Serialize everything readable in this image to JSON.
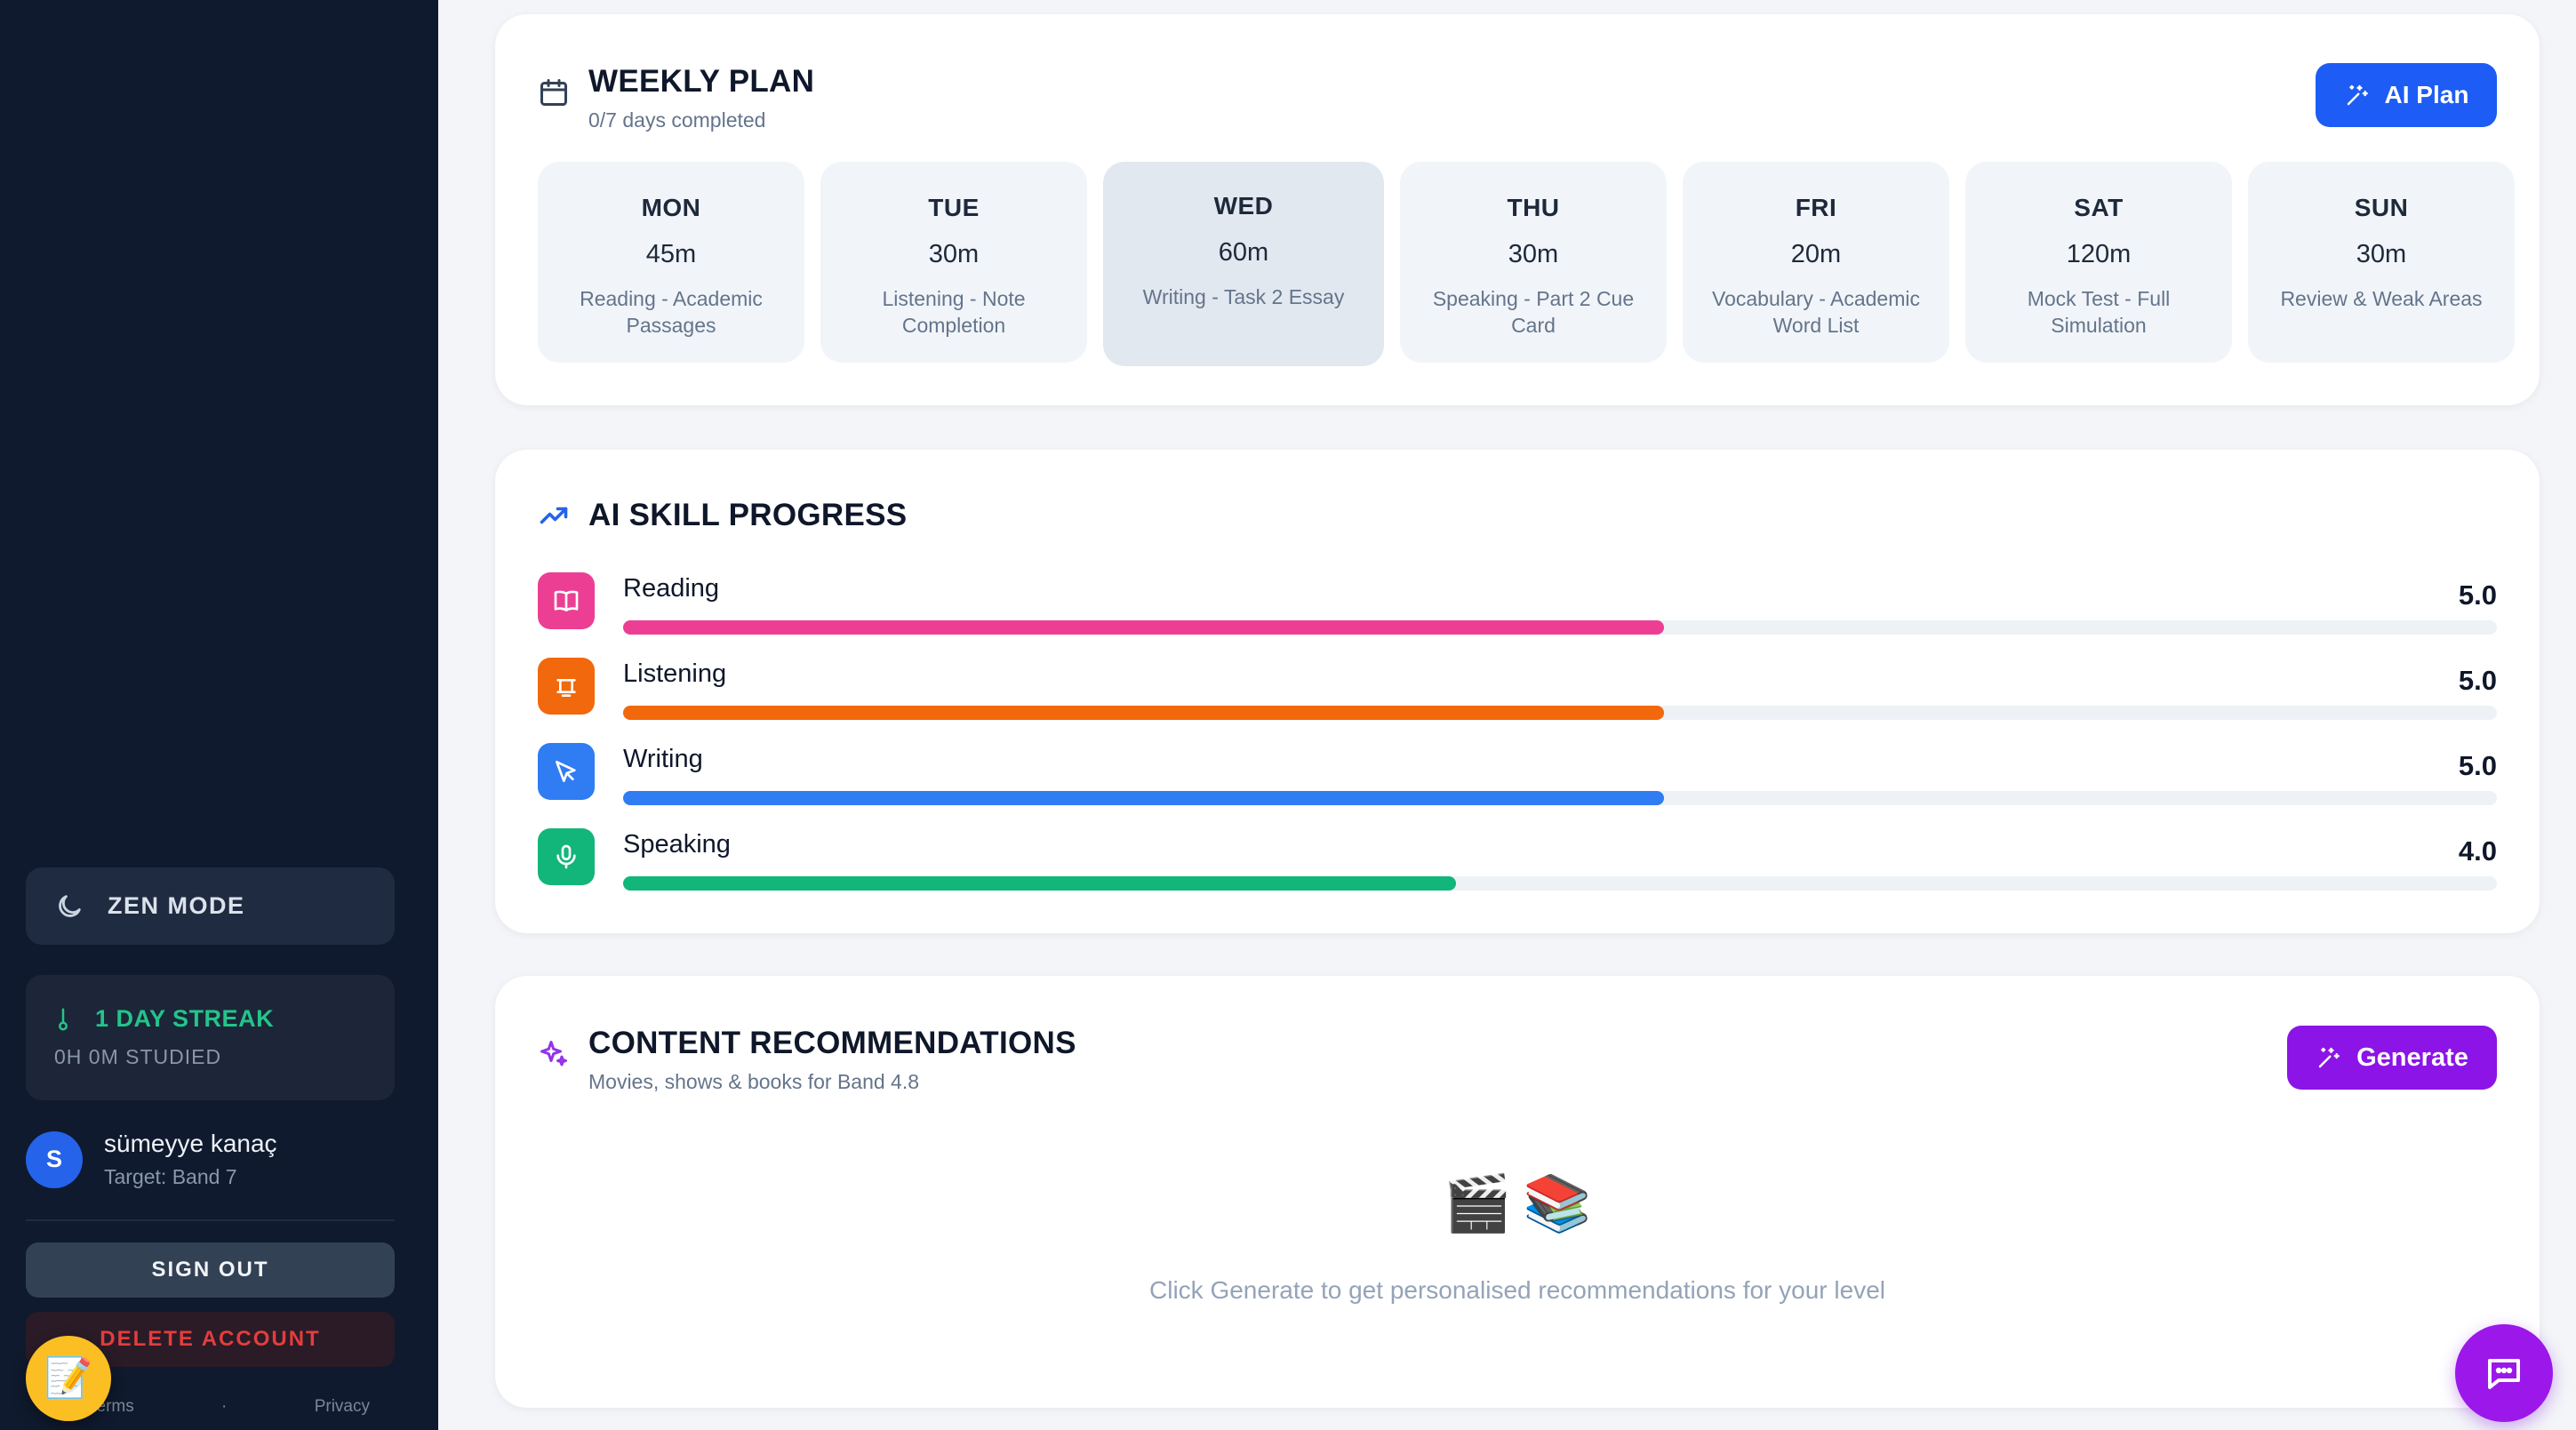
{
  "sidebar": {
    "zen_mode_label": "ZEN MODE",
    "streak_title": "1 DAY STREAK",
    "streak_sub": "0H 0M STUDIED",
    "user": {
      "initial": "S",
      "name": "sümeyye kanaç",
      "target": "Target: Band 7"
    },
    "sign_out_label": "SIGN OUT",
    "delete_account_label": "DELETE ACCOUNT",
    "footer": {
      "terms": "Terms",
      "separator": "·",
      "privacy": "Privacy"
    }
  },
  "weekly_plan": {
    "title": "WEEKLY PLAN",
    "subtitle": "0/7 days completed",
    "ai_plan_label": "AI Plan",
    "days": [
      {
        "name": "MON",
        "duration": "45m",
        "desc": "Reading - Academic Passages"
      },
      {
        "name": "TUE",
        "duration": "30m",
        "desc": "Listening - Note Completion"
      },
      {
        "name": "WED",
        "duration": "60m",
        "desc": "Writing - Task 2 Essay",
        "active": true
      },
      {
        "name": "THU",
        "duration": "30m",
        "desc": "Speaking - Part 2 Cue Card"
      },
      {
        "name": "FRI",
        "duration": "20m",
        "desc": "Vocabulary - Academic Word List"
      },
      {
        "name": "SAT",
        "duration": "120m",
        "desc": "Mock Test - Full Simulation"
      },
      {
        "name": "SUN",
        "duration": "30m",
        "desc": "Review & Weak Areas"
      }
    ]
  },
  "skill_progress": {
    "title": "AI SKILL PROGRESS",
    "max_band": 9,
    "skills": [
      {
        "name": "Reading",
        "value": "5.0",
        "score": 5.0,
        "color": "#ec3f93",
        "icon": "book-icon"
      },
      {
        "name": "Listening",
        "value": "5.0",
        "score": 5.0,
        "color": "#f2680c",
        "icon": "headphones-icon"
      },
      {
        "name": "Writing",
        "value": "5.0",
        "score": 5.0,
        "color": "#2f7cf3",
        "icon": "pen-icon"
      },
      {
        "name": "Speaking",
        "value": "4.0",
        "score": 4.0,
        "color": "#12b67a",
        "icon": "microphone-icon"
      }
    ]
  },
  "content_recommendations": {
    "title": "CONTENT RECOMMENDATIONS",
    "subtitle": "Movies, shows & books for Band 4.8",
    "generate_label": "Generate",
    "emojis": [
      "🎬",
      "📚"
    ],
    "empty_text": "Click Generate to get personalised recommendations for your level"
  },
  "fabs": {
    "notes_emoji": "📝",
    "chat_icon": "chat-bubble-icon"
  },
  "colors": {
    "sidebar_bg": "#0f1a2e",
    "primary_blue": "#1d5cf5",
    "purple": "#8c14e6",
    "streak_green": "#22c58a",
    "danger_red": "#e43d3d"
  }
}
